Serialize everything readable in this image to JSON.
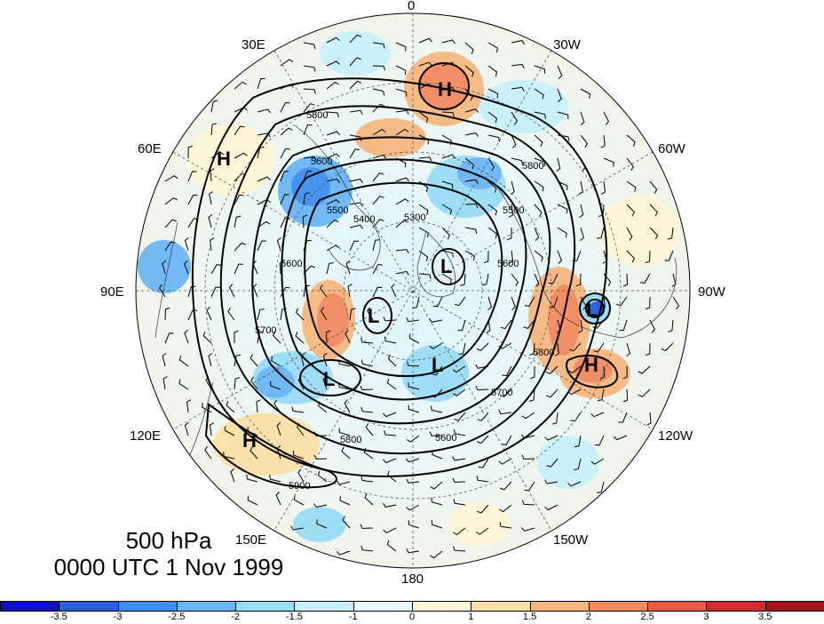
{
  "title": {
    "level": "500 hPa",
    "time": "0000 UTC 1 Nov 1999"
  },
  "longitude_labels": [
    "0",
    "30W",
    "60W",
    "90W",
    "120W",
    "150W",
    "180",
    "150E",
    "120E",
    "90E",
    "60E",
    "30E"
  ],
  "contour_labels": [
    "5800",
    "5600",
    "5500",
    "5300",
    "5400",
    "5600",
    "5800",
    "5500",
    "5600",
    "5700",
    "5800",
    "5900",
    "5600",
    "5800",
    "5700"
  ],
  "pressure_centers": [
    "H",
    "H",
    "L",
    "L",
    "L",
    "L",
    "L",
    "H",
    "H"
  ],
  "colorbar": {
    "colors": [
      "#1010c8",
      "#2a5ee0",
      "#3e8ef0",
      "#6ab6f4",
      "#9adcf6",
      "#c8f0fa",
      "#e6f8fc",
      "#fff6d8",
      "#fae0a8",
      "#f6b880",
      "#f28a60",
      "#ee5a48",
      "#d82a30",
      "#a8101c"
    ],
    "tick_labels": [
      "-3.5",
      "-3",
      "-2.5",
      "-2",
      "-1.5",
      "-1",
      "0",
      "1",
      "1.5",
      "2",
      "2.5",
      "3",
      "3.5"
    ]
  }
}
